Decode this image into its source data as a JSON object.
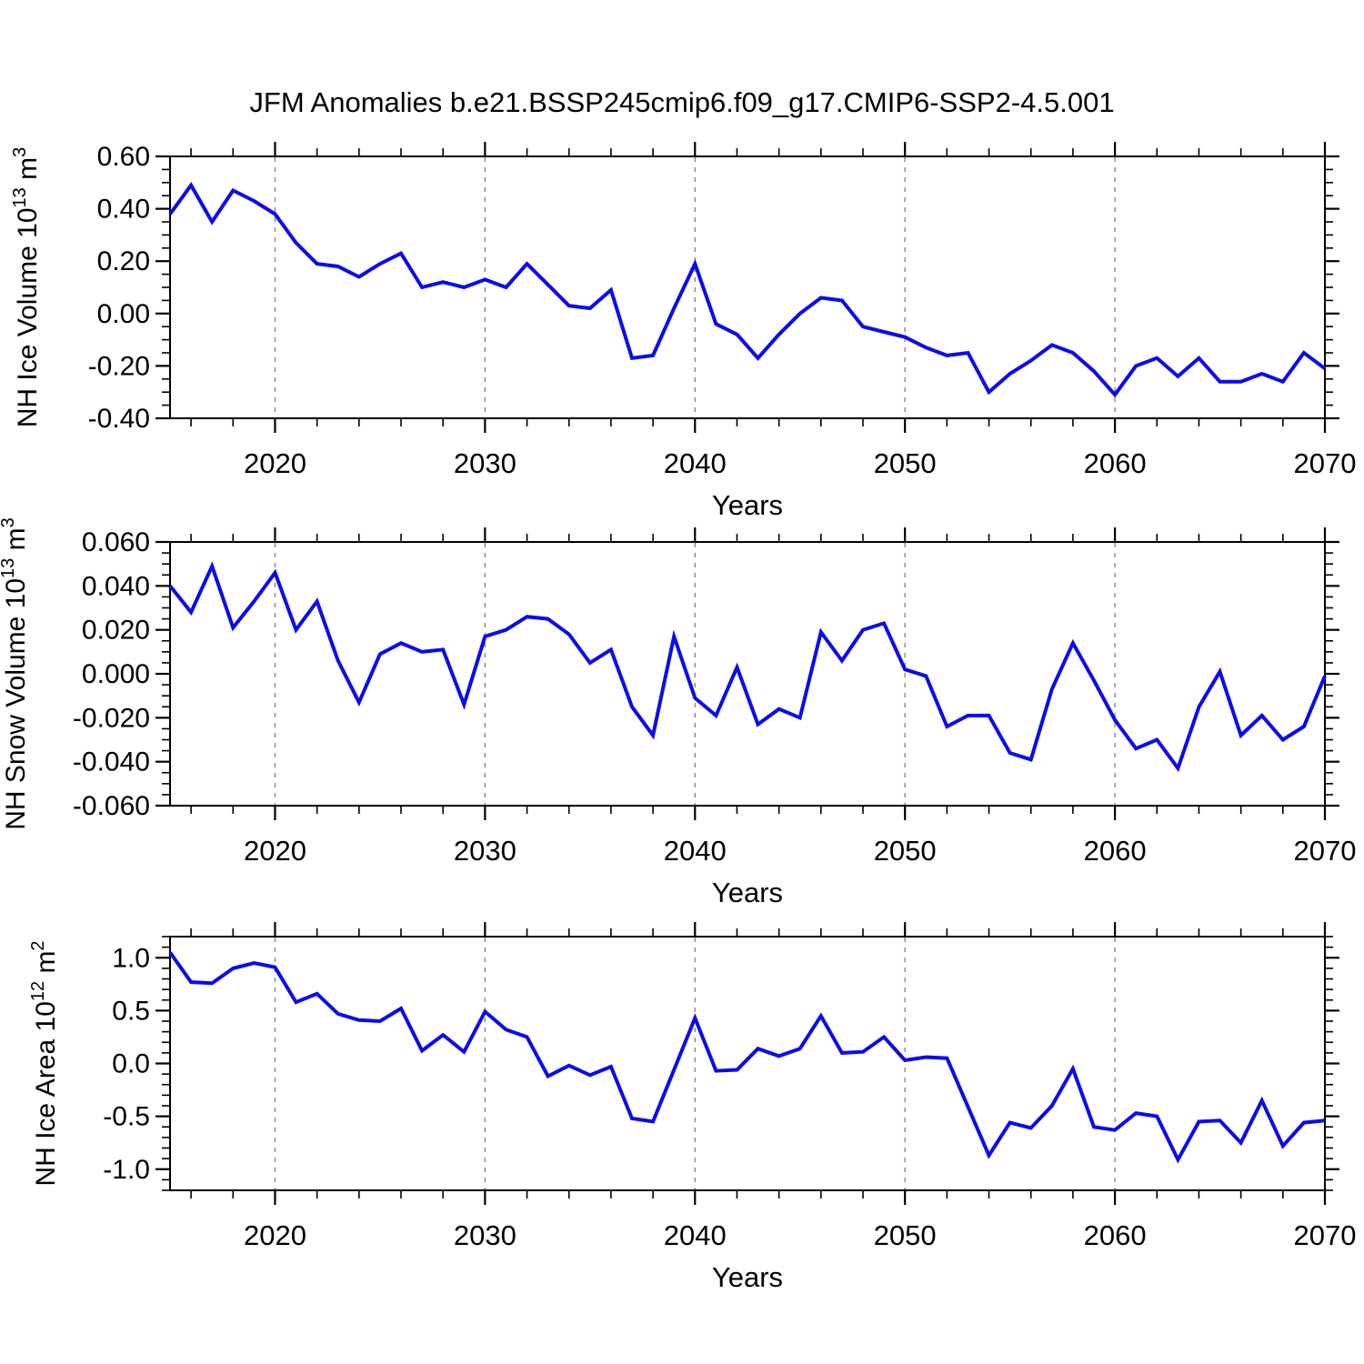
{
  "title": "JFM Anomalies b.e21.BSSP245cmip6.f09_g17.CMIP6-SSP2-4.5.001",
  "colors": {
    "line": "#0b0bee",
    "axis": "#000000",
    "grid": "#808080",
    "background": "#ffffff"
  },
  "x_axis": {
    "label": "Years",
    "range": [
      2015,
      2070
    ],
    "major_ticks": [
      2020,
      2030,
      2040,
      2050,
      2060,
      2070
    ],
    "major_tick_labels": [
      "2020",
      "2030",
      "2040",
      "2050",
      "2060",
      "2070"
    ],
    "minor_tick_step": 2,
    "gridline_years": [
      2020,
      2030,
      2040,
      2050,
      2060
    ]
  },
  "chart_data": [
    {
      "type": "line",
      "name": "nh-ice-volume",
      "xlabel": "Years",
      "ylabel": "NH Ice Volume 10^13 m^3",
      "ylabel_parts": [
        {
          "text": "NH Ice Volume 10"
        },
        {
          "text": "13",
          "sup": true
        },
        {
          "text": " m"
        },
        {
          "text": "3",
          "sup": true
        }
      ],
      "ylim": [
        -0.4,
        0.6
      ],
      "ytick_values": [
        0.6,
        0.4,
        0.2,
        0.0,
        -0.2,
        -0.4
      ],
      "ytick_labels": [
        "0.60",
        "0.40",
        "0.20",
        "0.00",
        "-0.20",
        "-0.40"
      ],
      "y_minor_step": 0.05,
      "x": [
        2015,
        2016,
        2017,
        2018,
        2019,
        2020,
        2021,
        2022,
        2023,
        2024,
        2025,
        2026,
        2027,
        2028,
        2029,
        2030,
        2031,
        2032,
        2033,
        2034,
        2035,
        2036,
        2037,
        2038,
        2039,
        2040,
        2041,
        2042,
        2043,
        2044,
        2045,
        2046,
        2047,
        2048,
        2049,
        2050,
        2051,
        2052,
        2053,
        2054,
        2055,
        2056,
        2057,
        2058,
        2059,
        2060,
        2061,
        2062,
        2063,
        2064,
        2065,
        2066,
        2067,
        2068,
        2069,
        2070
      ],
      "values": [
        0.38,
        0.49,
        0.35,
        0.47,
        0.43,
        0.38,
        0.27,
        0.19,
        0.18,
        0.14,
        0.19,
        0.23,
        0.1,
        0.12,
        0.1,
        0.13,
        0.1,
        0.19,
        0.11,
        0.03,
        0.02,
        0.09,
        -0.17,
        -0.16,
        0.02,
        0.19,
        -0.04,
        -0.08,
        -0.17,
        -0.08,
        0.0,
        0.06,
        0.05,
        -0.05,
        -0.07,
        -0.09,
        -0.13,
        -0.16,
        -0.15,
        -0.3,
        -0.23,
        -0.18,
        -0.12,
        -0.15,
        -0.22,
        -0.31,
        -0.2,
        -0.17,
        -0.24,
        -0.17,
        -0.26,
        -0.26,
        -0.23,
        -0.26,
        -0.15,
        -0.21
      ]
    },
    {
      "type": "line",
      "name": "nh-snow-volume",
      "xlabel": "Years",
      "ylabel": "NH Snow Volume 10^13 m^3",
      "ylabel_parts": [
        {
          "text": "NH Snow Volume 10"
        },
        {
          "text": "13",
          "sup": true
        },
        {
          "text": " m"
        },
        {
          "text": "3",
          "sup": true
        }
      ],
      "ylim": [
        -0.06,
        0.06
      ],
      "ytick_values": [
        0.06,
        0.04,
        0.02,
        0.0,
        -0.02,
        -0.04,
        -0.06
      ],
      "ytick_labels": [
        "0.060",
        "0.040",
        "0.020",
        "0.000",
        "-0.020",
        "-0.040",
        "-0.060"
      ],
      "y_minor_step": 0.005,
      "x": [
        2015,
        2016,
        2017,
        2018,
        2019,
        2020,
        2021,
        2022,
        2023,
        2024,
        2025,
        2026,
        2027,
        2028,
        2029,
        2030,
        2031,
        2032,
        2033,
        2034,
        2035,
        2036,
        2037,
        2038,
        2039,
        2040,
        2041,
        2042,
        2043,
        2044,
        2045,
        2046,
        2047,
        2048,
        2049,
        2050,
        2051,
        2052,
        2053,
        2054,
        2055,
        2056,
        2057,
        2058,
        2059,
        2060,
        2061,
        2062,
        2063,
        2064,
        2065,
        2066,
        2067,
        2068,
        2069,
        2070
      ],
      "values": [
        0.04,
        0.028,
        0.049,
        0.021,
        0.033,
        0.046,
        0.02,
        0.033,
        0.006,
        -0.013,
        0.009,
        0.014,
        0.01,
        0.011,
        -0.014,
        0.017,
        0.02,
        0.026,
        0.025,
        0.018,
        0.005,
        0.011,
        -0.015,
        -0.028,
        0.017,
        -0.011,
        -0.019,
        0.003,
        -0.023,
        -0.016,
        -0.02,
        0.019,
        0.006,
        0.02,
        0.023,
        0.002,
        -0.001,
        -0.024,
        -0.019,
        -0.019,
        -0.036,
        -0.039,
        -0.007,
        0.014,
        -0.003,
        -0.021,
        -0.034,
        -0.03,
        -0.043,
        -0.015,
        0.001,
        -0.028,
        -0.019,
        -0.03,
        -0.024,
        -0.001
      ]
    },
    {
      "type": "line",
      "name": "nh-ice-area",
      "xlabel": "Years",
      "ylabel": "NH Ice Area 10^12 m^2",
      "ylabel_parts": [
        {
          "text": "NH Ice Area 10"
        },
        {
          "text": "12",
          "sup": true
        },
        {
          "text": " m"
        },
        {
          "text": "2",
          "sup": true
        }
      ],
      "ylim": [
        -1.2,
        1.2
      ],
      "ytick_values": [
        1.0,
        0.5,
        0.0,
        -0.5,
        -1.0
      ],
      "ytick_labels": [
        "1.0",
        "0.5",
        "0.0",
        "-0.5",
        "-1.0"
      ],
      "y_minor_step": 0.1,
      "x": [
        2015,
        2016,
        2017,
        2018,
        2019,
        2020,
        2021,
        2022,
        2023,
        2024,
        2025,
        2026,
        2027,
        2028,
        2029,
        2030,
        2031,
        2032,
        2033,
        2034,
        2035,
        2036,
        2037,
        2038,
        2039,
        2040,
        2041,
        2042,
        2043,
        2044,
        2045,
        2046,
        2047,
        2048,
        2049,
        2050,
        2051,
        2052,
        2053,
        2054,
        2055,
        2056,
        2057,
        2058,
        2059,
        2060,
        2061,
        2062,
        2063,
        2064,
        2065,
        2066,
        2067,
        2068,
        2069,
        2070
      ],
      "values": [
        1.05,
        0.77,
        0.76,
        0.9,
        0.95,
        0.91,
        0.58,
        0.66,
        0.47,
        0.41,
        0.4,
        0.52,
        0.12,
        0.27,
        0.11,
        0.49,
        0.32,
        0.25,
        -0.12,
        -0.02,
        -0.11,
        -0.03,
        -0.52,
        -0.55,
        -0.06,
        0.43,
        -0.07,
        -0.06,
        0.14,
        0.07,
        0.14,
        0.45,
        0.1,
        0.11,
        0.25,
        0.03,
        0.06,
        0.05,
        -0.41,
        -0.87,
        -0.56,
        -0.61,
        -0.4,
        -0.05,
        -0.6,
        -0.63,
        -0.47,
        -0.5,
        -0.91,
        -0.55,
        -0.54,
        -0.75,
        -0.35,
        -0.78,
        -0.56,
        -0.54
      ]
    }
  ]
}
